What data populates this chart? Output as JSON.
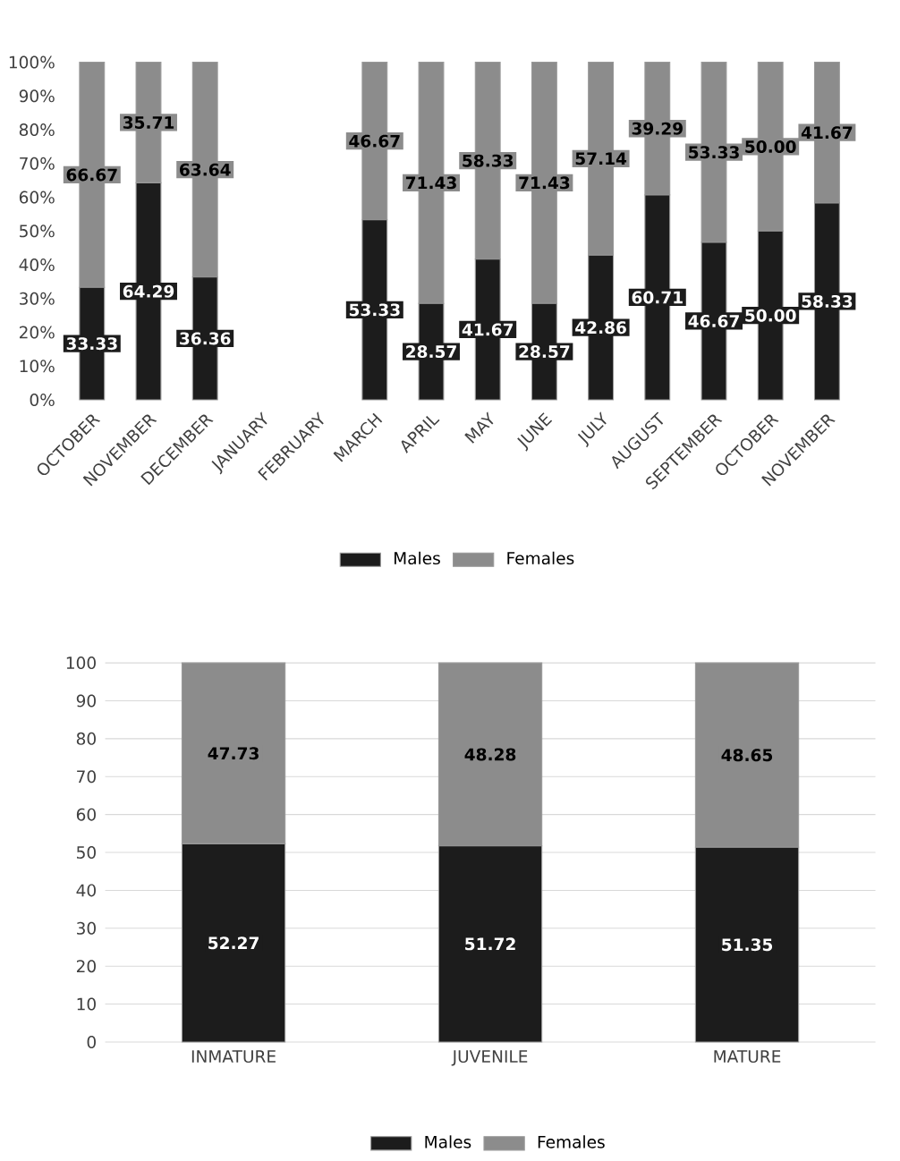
{
  "chart_data": [
    {
      "type": "bar",
      "stacked": true,
      "legend": "bottom",
      "categories": [
        "OCTOBER",
        "NOVEMBER",
        "DECEMBER",
        "JANUARY",
        "FEBRUARY",
        "MARCH",
        "APRIL",
        "MAY",
        "JUNE",
        "JULY",
        "AUGUST",
        "SEPTEMBER",
        "OCTOBER",
        "NOVEMBER"
      ],
      "ylim": [
        0,
        100
      ],
      "yticks": [
        {
          "value": 0,
          "label": "0%"
        },
        {
          "value": 10,
          "label": "10%"
        },
        {
          "value": 20,
          "label": "20%"
        },
        {
          "value": 30,
          "label": "30%"
        },
        {
          "value": 40,
          "label": "40%"
        },
        {
          "value": 50,
          "label": "50%"
        },
        {
          "value": 60,
          "label": "60%"
        },
        {
          "value": 70,
          "label": "70%"
        },
        {
          "value": 80,
          "label": "80%"
        },
        {
          "value": 90,
          "label": "90%"
        },
        {
          "value": 100,
          "label": "100%"
        }
      ],
      "series": [
        {
          "name": "Males",
          "color": "#1c1c1c",
          "values": [
            33.33,
            64.29,
            36.36,
            null,
            null,
            53.33,
            28.57,
            41.67,
            28.57,
            42.86,
            60.71,
            46.67,
            50.0,
            58.33
          ],
          "value_labels": [
            "33.33",
            "64.29",
            "36.36",
            null,
            null,
            "53.33",
            "28.57",
            "41.67",
            "28.57",
            "42.86",
            "60.71",
            "46.67",
            "50.00",
            "58.33"
          ]
        },
        {
          "name": "Females",
          "color": "#8c8c8c",
          "values": [
            66.67,
            35.71,
            63.64,
            null,
            null,
            46.67,
            71.43,
            58.33,
            71.43,
            57.14,
            39.29,
            53.33,
            50.0,
            41.67
          ],
          "value_labels": [
            "66.67",
            "35.71",
            "63.64",
            null,
            null,
            "46.67",
            "71.43",
            "58.33",
            "71.43",
            "57.14",
            "39.29",
            "53.33",
            "50.00",
            "41.67"
          ]
        }
      ]
    },
    {
      "type": "bar",
      "stacked": true,
      "legend": "bottom",
      "grid": "y",
      "categories": [
        "INMATURE",
        "JUVENILE",
        "MATURE"
      ],
      "ylim": [
        0,
        100
      ],
      "yticks": [
        0,
        10,
        20,
        30,
        40,
        50,
        60,
        70,
        80,
        90,
        100
      ],
      "series": [
        {
          "name": "Males",
          "color": "#1c1c1c",
          "values": [
            52.27,
            51.72,
            51.35
          ],
          "value_labels": [
            "52.27",
            "51.72",
            "51.35"
          ]
        },
        {
          "name": "Females",
          "color": "#8c8c8c",
          "values": [
            47.73,
            48.28,
            48.65
          ],
          "value_labels": [
            "47.73",
            "48.28",
            "48.65"
          ]
        }
      ]
    }
  ]
}
